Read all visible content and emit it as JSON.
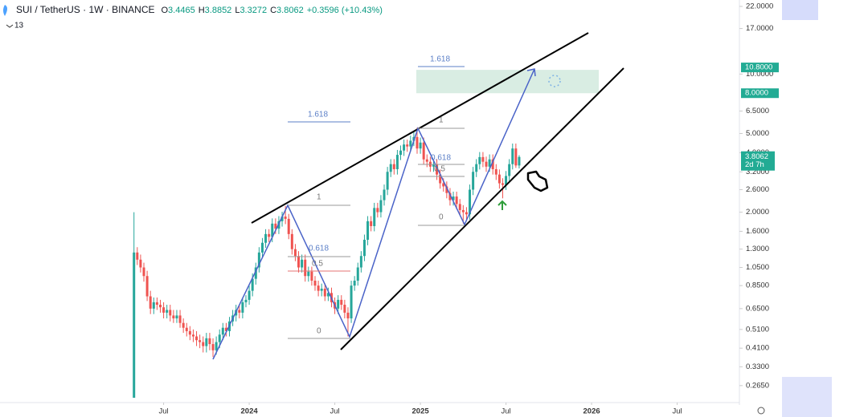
{
  "chart_data": {
    "type": "candlestick",
    "title": "SUI / TetherUS · 1W · BINANCE",
    "ohlc_header": [
      {
        "label": "O",
        "value": 3.4465
      },
      {
        "label": "H",
        "value": 3.8852
      },
      {
        "label": "L",
        "value": 3.3272
      },
      {
        "label": "C",
        "value": 3.8062
      }
    ],
    "change": "+0.3596 (+10.43%)",
    "indicator_count": 13,
    "log_scale": true,
    "up_color": "#26a69a",
    "down_color": "#ef5350",
    "xlim": [
      -75.7,
      148.9
    ],
    "xticks": [
      {
        "value": -26,
        "label": "Jul"
      },
      {
        "value": 0,
        "label": "2024"
      },
      {
        "value": 26,
        "label": "Jul"
      },
      {
        "value": 52,
        "label": "2025"
      },
      {
        "value": 78,
        "label": "Jul"
      },
      {
        "value": 104,
        "label": "2026"
      },
      {
        "value": 130,
        "label": "Jul"
      }
    ],
    "ylim": [
      0.2216,
      23.7
    ],
    "yticks": [
      {
        "value": 22,
        "label": "22.0000"
      },
      {
        "value": 17,
        "label": "17.0000"
      },
      {
        "value": 10,
        "label": "10.0000"
      },
      {
        "value": 6.5,
        "label": "6.5000"
      },
      {
        "value": 5,
        "label": "5.0000"
      },
      {
        "value": 4,
        "label": "4.0000"
      },
      {
        "value": 3.2,
        "label": "3.2000"
      },
      {
        "value": 2.6,
        "label": "2.6000"
      },
      {
        "value": 2,
        "label": "2.0000"
      },
      {
        "value": 1.6,
        "label": "1.6000"
      },
      {
        "value": 1.3,
        "label": "1.3000"
      },
      {
        "value": 1.05,
        "label": "1.0500"
      },
      {
        "value": 0.85,
        "label": "0.8500"
      },
      {
        "value": 0.65,
        "label": "0.6500"
      },
      {
        "value": 0.51,
        "label": "0.5100"
      },
      {
        "value": 0.41,
        "label": "0.4100"
      },
      {
        "value": 0.33,
        "label": "0.3300"
      },
      {
        "value": 0.265,
        "label": "0.2650"
      }
    ],
    "price_tags": [
      {
        "value": 10.8,
        "label": "10.8000"
      },
      {
        "value": 8,
        "label": "8.0000"
      }
    ],
    "current_price": 3.8062,
    "countdown": "2d 7h",
    "fib_labels": [
      "1.618",
      "1",
      "0.618",
      "0.5",
      "0",
      "1.618",
      "1",
      "0.618",
      "0.5",
      "0"
    ],
    "x": [
      -35,
      -34,
      -33,
      -32,
      -31,
      -30,
      -29,
      -28,
      -27,
      -26,
      -25,
      -24,
      -23,
      -22,
      -21,
      -20,
      -19,
      -18,
      -17,
      -16,
      -15,
      -14,
      -13,
      -12,
      -11,
      -10,
      -9,
      -8,
      -7,
      -6,
      -5,
      -4,
      -3,
      -2,
      -1,
      0,
      1,
      2,
      3,
      4,
      5,
      6,
      7,
      8,
      9,
      10,
      11,
      12,
      13,
      14,
      15,
      16,
      17,
      18,
      19,
      20,
      21,
      22,
      23,
      24,
      25,
      26,
      27,
      28,
      29,
      30,
      31,
      32,
      33,
      34,
      35,
      36,
      37,
      38,
      39,
      40,
      41,
      42,
      43,
      44,
      45,
      46,
      47,
      48,
      49,
      50,
      51,
      52,
      53,
      54,
      55,
      56,
      57,
      58,
      59,
      60,
      61,
      62,
      63,
      64,
      65,
      66,
      67,
      68,
      69,
      70,
      71,
      72,
      73,
      74,
      75,
      76,
      77,
      78,
      79,
      80,
      81,
      82
    ],
    "open": [
      0.23,
      1.25,
      1.15,
      1.05,
      0.95,
      0.75,
      0.65,
      0.7,
      0.68,
      0.66,
      0.62,
      0.64,
      0.6,
      0.58,
      0.6,
      0.55,
      0.52,
      0.5,
      0.48,
      0.47,
      0.45,
      0.44,
      0.42,
      0.46,
      0.43,
      0.4,
      0.44,
      0.48,
      0.52,
      0.5,
      0.56,
      0.6,
      0.64,
      0.62,
      0.7,
      0.72,
      0.8,
      0.92,
      1.05,
      1.25,
      1.4,
      1.55,
      1.5,
      1.75,
      1.65,
      1.8,
      1.9,
      1.85,
      1.55,
      1.3,
      1.2,
      1.05,
      1.15,
      0.95,
      1,
      0.9,
      0.85,
      0.8,
      0.82,
      0.75,
      0.78,
      0.7,
      0.65,
      0.72,
      0.68,
      0.62,
      0.58,
      0.85,
      0.9,
      1.05,
      1.2,
      1.45,
      1.8,
      1.7,
      2.1,
      2,
      2.3,
      2.6,
      3.2,
      3.5,
      3.3,
      3.9,
      4.1,
      4.4,
      4.3,
      4.6,
      4.8,
      4.2,
      4.5,
      3.7,
      3.6,
      3.4,
      3.5,
      3.1,
      2.8,
      2.7,
      2.5,
      2.3,
      2.4,
      2.2,
      2.05,
      2,
      1.95,
      2.6,
      3.2,
      3.5,
      3.8,
      3.6,
      3.4,
      3.7,
      3.3,
      3.1,
      2.8,
      2.75,
      3.05,
      3.5,
      4.2,
      3.4465
    ],
    "high": [
      2,
      1.33,
      1.22,
      1.11,
      1.01,
      0.8,
      0.74,
      0.74,
      0.72,
      0.7,
      0.68,
      0.68,
      0.64,
      0.64,
      0.64,
      0.58,
      0.55,
      0.53,
      0.51,
      0.5,
      0.48,
      0.47,
      0.49,
      0.49,
      0.46,
      0.47,
      0.51,
      0.55,
      0.55,
      0.59,
      0.64,
      0.68,
      0.68,
      0.74,
      0.76,
      0.85,
      0.98,
      1.11,
      1.33,
      1.48,
      1.64,
      1.64,
      1.86,
      1.86,
      1.91,
      2.01,
      2.15,
      1.96,
      1.64,
      1.38,
      1.27,
      1.22,
      1.22,
      1.06,
      1.06,
      0.95,
      0.9,
      0.87,
      0.87,
      0.83,
      0.83,
      0.74,
      0.76,
      0.76,
      0.72,
      0.66,
      0.9,
      0.95,
      1.11,
      1.27,
      1.54,
      1.91,
      1.91,
      2.23,
      2.23,
      2.44,
      2.76,
      3.39,
      3.71,
      3.71,
      4.13,
      4.35,
      4.66,
      4.66,
      4.88,
      5.09,
      5.35,
      4.77,
      4.77,
      3.92,
      3.82,
      3.71,
      3.71,
      3.29,
      2.97,
      2.86,
      2.65,
      2.54,
      2.54,
      2.33,
      2.17,
      2.12,
      2.76,
      3.39,
      3.71,
      4.03,
      4.03,
      3.82,
      3.92,
      3.92,
      3.5,
      3.29,
      2.97,
      3.23,
      3.71,
      4.45,
      4.45,
      3.8852
    ],
    "low": [
      0.23,
      1.08,
      0.99,
      0.89,
      0.71,
      0.61,
      0.61,
      0.64,
      0.62,
      0.58,
      0.58,
      0.56,
      0.55,
      0.55,
      0.52,
      0.49,
      0.47,
      0.45,
      0.44,
      0.42,
      0.41,
      0.39,
      0.39,
      0.4,
      0.37,
      0.38,
      0.41,
      0.45,
      0.47,
      0.47,
      0.53,
      0.56,
      0.58,
      0.58,
      0.66,
      0.68,
      0.75,
      0.86,
      0.99,
      1.18,
      1.32,
      1.41,
      1.41,
      1.55,
      1.55,
      1.69,
      1.74,
      1.46,
      1.22,
      1.13,
      0.99,
      0.99,
      0.89,
      0.89,
      0.85,
      0.8,
      0.75,
      0.75,
      0.71,
      0.71,
      0.66,
      0.61,
      0.61,
      0.64,
      0.58,
      0.47,
      0.55,
      0.8,
      0.85,
      0.99,
      1.13,
      1.36,
      1.6,
      1.6,
      1.88,
      1.88,
      2.16,
      2.44,
      3.01,
      3.1,
      3.1,
      3.67,
      3.85,
      4.04,
      4.04,
      4.32,
      3.95,
      3.95,
      3.48,
      3.38,
      3.2,
      3.2,
      2.91,
      2.63,
      2.54,
      2.35,
      2.16,
      2.16,
      2.07,
      1.93,
      1.75,
      1.83,
      1.83,
      2.44,
      3.01,
      3.29,
      3.38,
      3.2,
      3.2,
      3.1,
      2.91,
      2.63,
      2.35,
      2.59,
      2.87,
      3.29,
      3.35,
      3.3272
    ],
    "close": [
      1.25,
      1.15,
      1.05,
      0.95,
      0.75,
      0.65,
      0.7,
      0.68,
      0.66,
      0.62,
      0.64,
      0.6,
      0.58,
      0.6,
      0.55,
      0.52,
      0.5,
      0.48,
      0.47,
      0.45,
      0.44,
      0.42,
      0.46,
      0.43,
      0.4,
      0.44,
      0.48,
      0.52,
      0.5,
      0.56,
      0.6,
      0.64,
      0.62,
      0.7,
      0.72,
      0.8,
      0.92,
      1.05,
      1.25,
      1.4,
      1.55,
      1.5,
      1.75,
      1.65,
      1.8,
      1.9,
      1.85,
      1.55,
      1.3,
      1.2,
      1.05,
      1.15,
      0.95,
      1,
      0.9,
      0.85,
      0.8,
      0.82,
      0.75,
      0.78,
      0.7,
      0.65,
      0.72,
      0.68,
      0.62,
      0.58,
      0.85,
      0.9,
      1.05,
      1.2,
      1.45,
      1.8,
      1.7,
      2.1,
      2,
      2.3,
      2.6,
      3.2,
      3.5,
      3.3,
      3.9,
      4.1,
      4.4,
      4.3,
      4.6,
      4.8,
      4.2,
      4.5,
      3.7,
      3.6,
      3.4,
      3.5,
      3.1,
      2.8,
      2.7,
      2.5,
      2.3,
      2.4,
      2.2,
      2.05,
      2,
      1.95,
      2.6,
      3.2,
      3.5,
      3.8,
      3.6,
      3.4,
      3.7,
      3.3,
      3.1,
      2.8,
      2.75,
      3.05,
      3.5,
      4.2,
      3.4465,
      3.8062
    ]
  }
}
